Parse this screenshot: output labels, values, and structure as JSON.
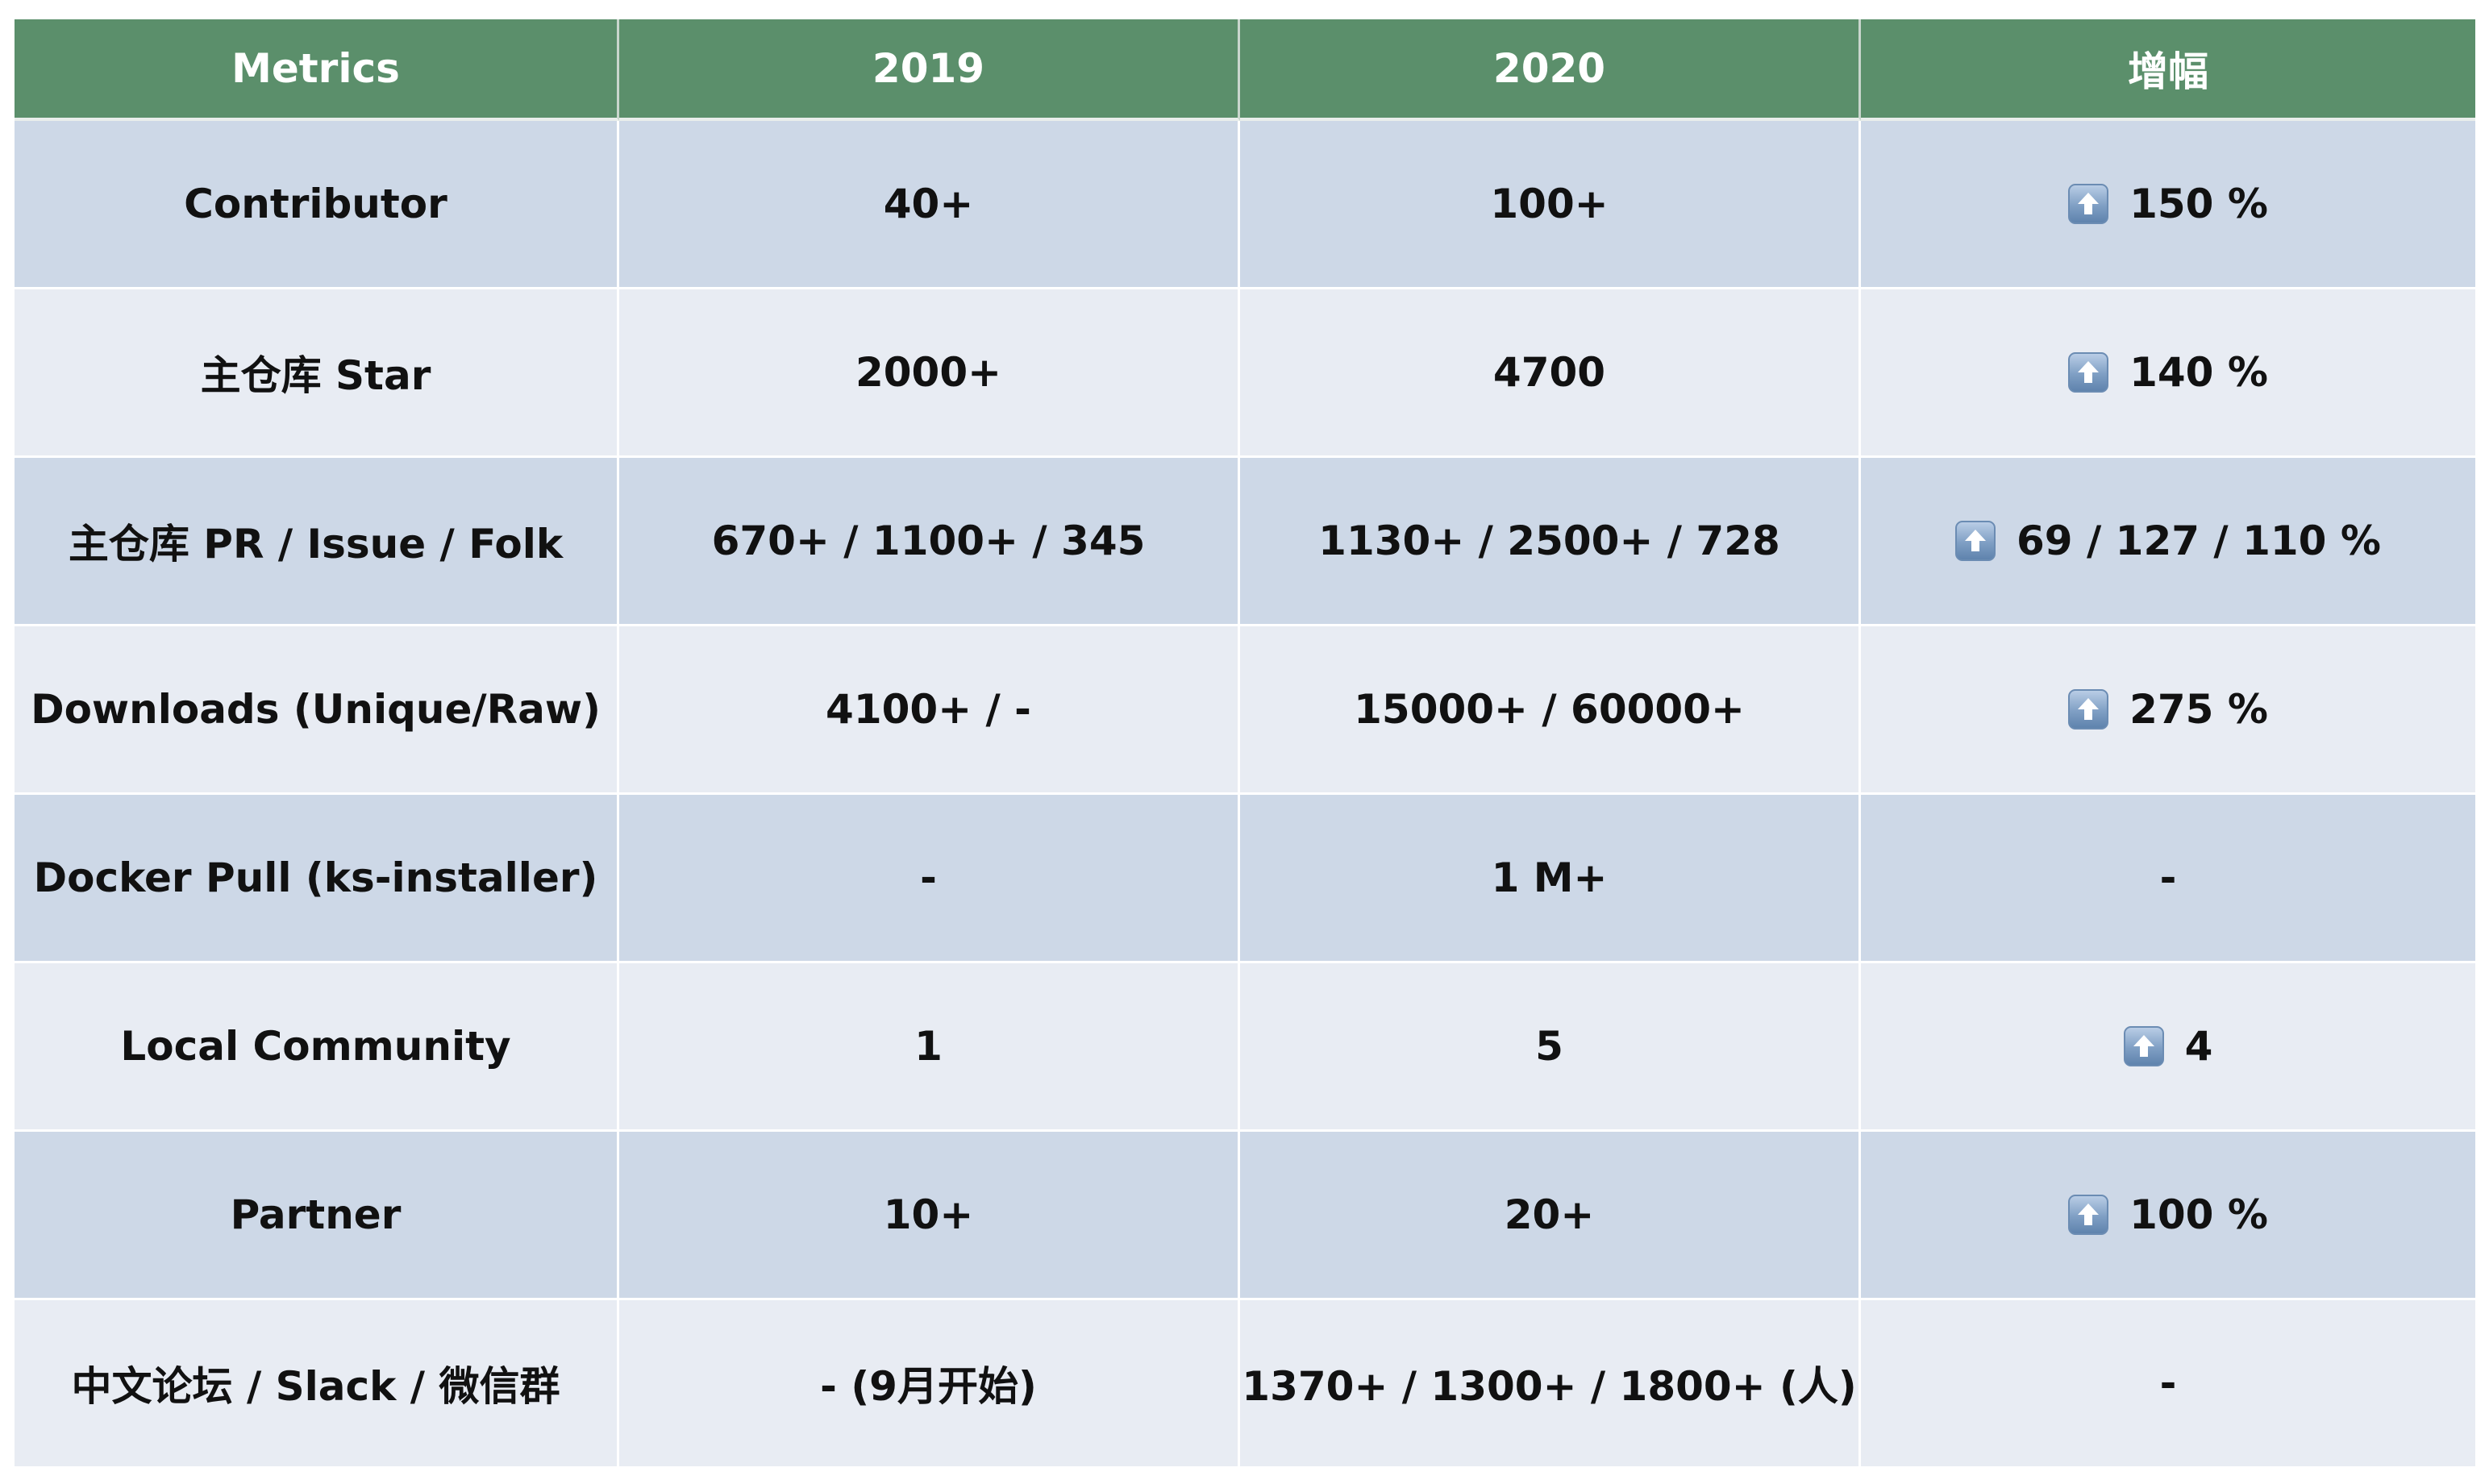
{
  "table": {
    "headers": [
      "Metrics",
      "2019",
      "2020",
      "增幅"
    ],
    "rows": [
      {
        "metric": "Contributor",
        "y2019": "40+",
        "y2020": "100+",
        "gain": "150 %",
        "gain_up": true
      },
      {
        "metric": "主仓库 Star",
        "y2019": "2000+",
        "y2020": "4700",
        "gain": "140 %",
        "gain_up": true
      },
      {
        "metric": "主仓库 PR / Issue / Folk",
        "y2019": "670+ / 1100+ / 345",
        "y2020": "1130+ / 2500+ / 728",
        "gain": "69 / 127 / 110 %",
        "gain_up": true
      },
      {
        "metric": "Downloads (Unique/Raw)",
        "y2019": "4100+ /  -",
        "y2020": "15000+ / 60000+",
        "gain": "275 %",
        "gain_up": true
      },
      {
        "metric": "Docker Pull (ks-installer)",
        "y2019": "-",
        "y2020": "1 M+",
        "gain": "-",
        "gain_up": false
      },
      {
        "metric": "Local Community",
        "y2019": "1",
        "y2020": "5",
        "gain": "4",
        "gain_up": true
      },
      {
        "metric": "Partner",
        "y2019": "10+",
        "y2020": "20+",
        "gain": "100 %",
        "gain_up": true
      },
      {
        "metric": "中文论坛 / Slack / 微信群",
        "y2019": "- (9月开始)",
        "y2020": "1370+ / 1300+ / 1800+ (人)",
        "gain": "-",
        "gain_up": false
      }
    ]
  },
  "colors": {
    "header_bg": "#5b8f6b",
    "row_dark": "#cdd8e7",
    "row_light": "#e8ecf3",
    "up_icon": "#7f9fc4"
  },
  "icons": {
    "gain_icon": "up-arrow-icon"
  }
}
